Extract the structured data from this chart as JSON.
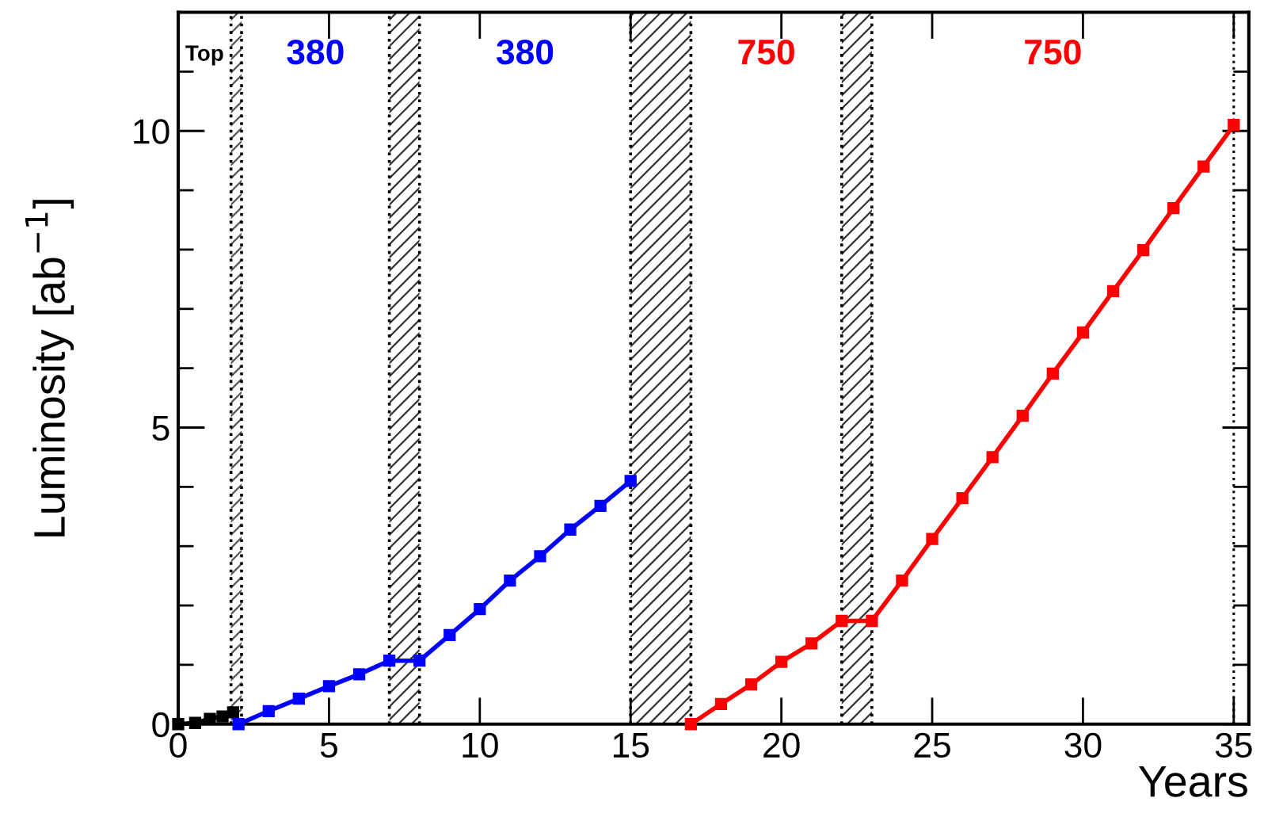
{
  "chart_data": {
    "type": "line",
    "xlabel": "Years",
    "ylabel": "Luminosity [ab$^{−1}$]",
    "xlim": [
      0,
      35.5
    ],
    "ylim": [
      0,
      12
    ],
    "xticks": [
      0,
      5,
      10,
      15,
      20,
      25,
      30,
      35
    ],
    "yticks": [
      0,
      {
        "value": 1,
        "label": null
      },
      {
        "value": 2,
        "label": null
      },
      {
        "value": 3,
        "label": null
      },
      {
        "value": 4,
        "label": null
      },
      5,
      {
        "value": 6,
        "label": null
      },
      {
        "value": 7,
        "label": null
      },
      {
        "value": 8,
        "label": null
      },
      {
        "value": 9,
        "label": null
      },
      10,
      {
        "value": 11,
        "label": null
      }
    ],
    "marker": "square",
    "line_style": "solid",
    "grid": false,
    "series": [
      {
        "color": "#000000",
        "x": [
          0,
          0.56,
          1.05,
          1.47,
          1.82
        ],
        "values": [
          0,
          0.02,
          0.09,
          0.13,
          0.2
        ]
      },
      {
        "color": "#0000ff",
        "x": [
          2,
          3,
          4,
          5,
          6,
          7,
          8,
          9,
          10,
          11,
          12,
          13,
          14,
          15
        ],
        "values": [
          0,
          0.22,
          0.43,
          0.64,
          0.84,
          1.07,
          1.07,
          1.5,
          1.94,
          2.42,
          2.83,
          3.28,
          3.68,
          4.1
        ]
      },
      {
        "color": "#ff0000",
        "x": [
          17,
          18,
          19,
          20,
          21,
          22,
          23,
          24,
          25,
          26,
          27,
          28,
          29,
          30,
          31,
          32,
          33,
          34,
          35
        ],
        "values": [
          0,
          0.34,
          0.67,
          1.05,
          1.36,
          1.74,
          1.74,
          2.42,
          3.12,
          3.81,
          4.5,
          5.2,
          5.91,
          6.6,
          7.3,
          7.99,
          8.7,
          9.4,
          10.1
        ]
      }
    ],
    "bands": [
      {
        "axis": "x",
        "from": 1.75,
        "to": 2.1,
        "color": "#555555"
      },
      {
        "axis": "x",
        "from": 7,
        "to": 8,
        "color": "#333333"
      },
      {
        "axis": "x",
        "from": 15,
        "to": 17,
        "color": "#333333"
      },
      {
        "axis": "x",
        "from": 22,
        "to": 23,
        "color": "#333333"
      }
    ],
    "ref_lines": [
      {
        "axis": "x",
        "value": 35,
        "line_style": "dotted",
        "color": "#000000"
      }
    ],
    "annotations": [
      "Top",
      "380",
      "380",
      "750",
      "750"
    ]
  }
}
